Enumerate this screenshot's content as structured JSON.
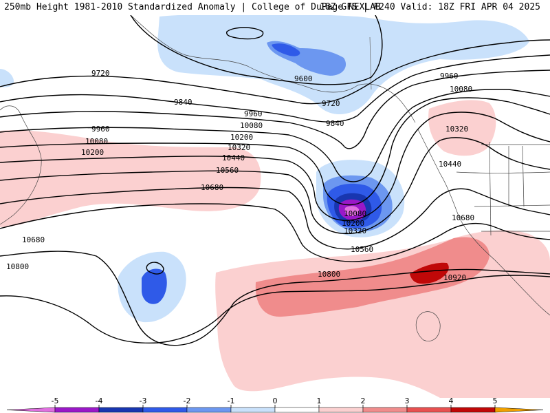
{
  "header": {
    "left": "250mb Height 1981-2010 Standardized Anomaly | College of DuPage NEXLAB",
    "right": "18Z GFS | F240 Valid: 18Z FRI APR 04 2025"
  },
  "contour_labels": [
    "9600",
    "9720",
    "9720",
    "9840",
    "9840",
    "9960",
    "9960",
    "9960",
    "10080",
    "10080",
    "10080",
    "10080",
    "10200",
    "10200",
    "10200",
    "10320",
    "10320",
    "10320",
    "10440",
    "10440",
    "10560",
    "10560",
    "10680",
    "10680",
    "10680",
    "10800",
    "10800",
    "10920"
  ],
  "colorbar": {
    "ticks": [
      "-5",
      "-4",
      "-3",
      "-2",
      "-1",
      "0",
      "1",
      "2",
      "3",
      "4",
      "5"
    ],
    "colors": [
      "#e070e0",
      "#9a18c8",
      "#1836b0",
      "#2f5ae8",
      "#6c97f0",
      "#c9e1fb",
      "#ffffff",
      "#fbd0d0",
      "#f08c8c",
      "#e85050",
      "#c00808",
      "#f0a000"
    ]
  }
}
